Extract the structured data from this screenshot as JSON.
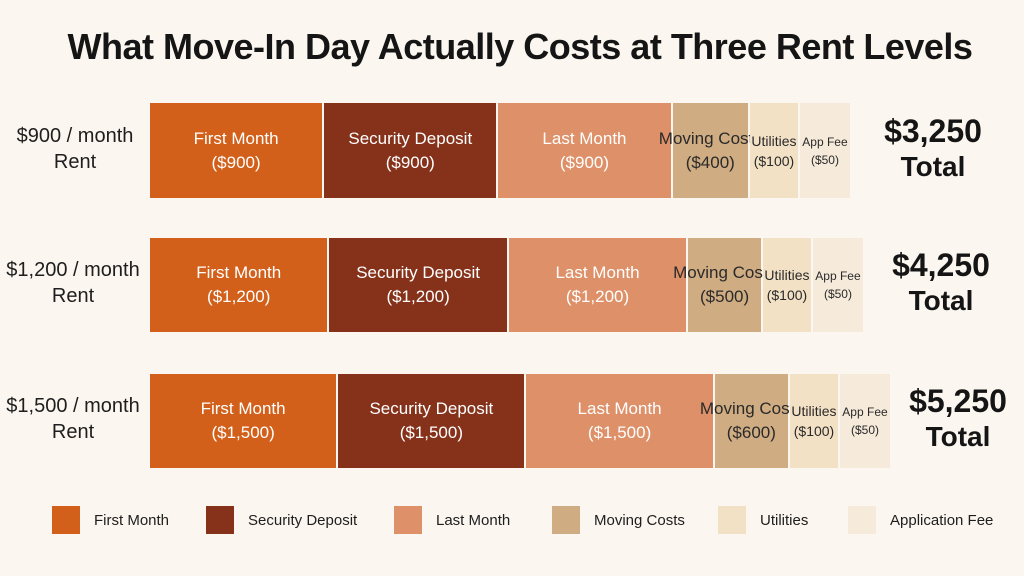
{
  "chart_data": {
    "type": "bar",
    "orientation": "horizontal",
    "stacked": true,
    "title": "What Move-In Day Actually Costs at Three Rent Levels",
    "colors": {
      "First Month": "#d2601a",
      "Security Deposit": "#86321a",
      "Last Month": "#de9068",
      "Moving Costs": "#cfac82",
      "Utilities": "#f3e1c5",
      "Application Fee": "#f6ebdb"
    },
    "legend": [
      "First Month",
      "Security Deposit",
      "Last Month",
      "Moving Costs",
      "Utilities",
      "Application Fee"
    ],
    "legend_position": "bottom",
    "rows": [
      {
        "label": "$900 / month Rent",
        "total_value": "$3,250",
        "total_word": "Total",
        "segments": [
          {
            "category": "First Month",
            "name": "First Month",
            "amount_label": "($900)",
            "value": 900
          },
          {
            "category": "Security Deposit",
            "name": "Security Deposit",
            "amount_label": "($900)",
            "value": 900
          },
          {
            "category": "Last Month",
            "name": "Last Month",
            "amount_label": "($900)",
            "value": 900
          },
          {
            "category": "Moving Costs",
            "name": "Moving Costs",
            "amount_label": "($400)",
            "value": 400
          },
          {
            "category": "Utilities",
            "name": "Utilities",
            "amount_label": "($100)",
            "value": 100
          },
          {
            "category": "Application Fee",
            "name": "App Fee",
            "amount_label": "($50)",
            "value": 50
          }
        ]
      },
      {
        "label": "$1,200 / month Rent",
        "total_value": "$4,250",
        "total_word": "Total",
        "segments": [
          {
            "category": "First Month",
            "name": "First Month",
            "amount_label": "($1,200)",
            "value": 1200
          },
          {
            "category": "Security Deposit",
            "name": "Security Deposit",
            "amount_label": "($1,200)",
            "value": 1200
          },
          {
            "category": "Last Month",
            "name": "Last Month",
            "amount_label": "($1,200)",
            "value": 1200
          },
          {
            "category": "Moving Costs",
            "name": "Moving Costs",
            "amount_label": "($500)",
            "value": 500
          },
          {
            "category": "Utilities",
            "name": "Utilities",
            "amount_label": "($100)",
            "value": 100
          },
          {
            "category": "Application Fee",
            "name": "App Fee",
            "amount_label": "($50)",
            "value": 50
          }
        ]
      },
      {
        "label": "$1,500 / month Rent",
        "total_value": "$5,250",
        "total_word": "Total",
        "segments": [
          {
            "category": "First Month",
            "name": "First Month",
            "amount_label": "($1,500)",
            "value": 1500
          },
          {
            "category": "Security Deposit",
            "name": "Security Deposit",
            "amount_label": "($1,500)",
            "value": 1500
          },
          {
            "category": "Last Month",
            "name": "Last Month",
            "amount_label": "($1,500)",
            "value": 1500
          },
          {
            "category": "Moving Costs",
            "name": "Moving Costs",
            "amount_label": "($600)",
            "value": 600
          },
          {
            "category": "Utilities",
            "name": "Utilities",
            "amount_label": "($100)",
            "value": 100
          },
          {
            "category": "Application Fee",
            "name": "App Fee",
            "amount_label": "($50)",
            "value": 50
          }
        ]
      }
    ]
  }
}
